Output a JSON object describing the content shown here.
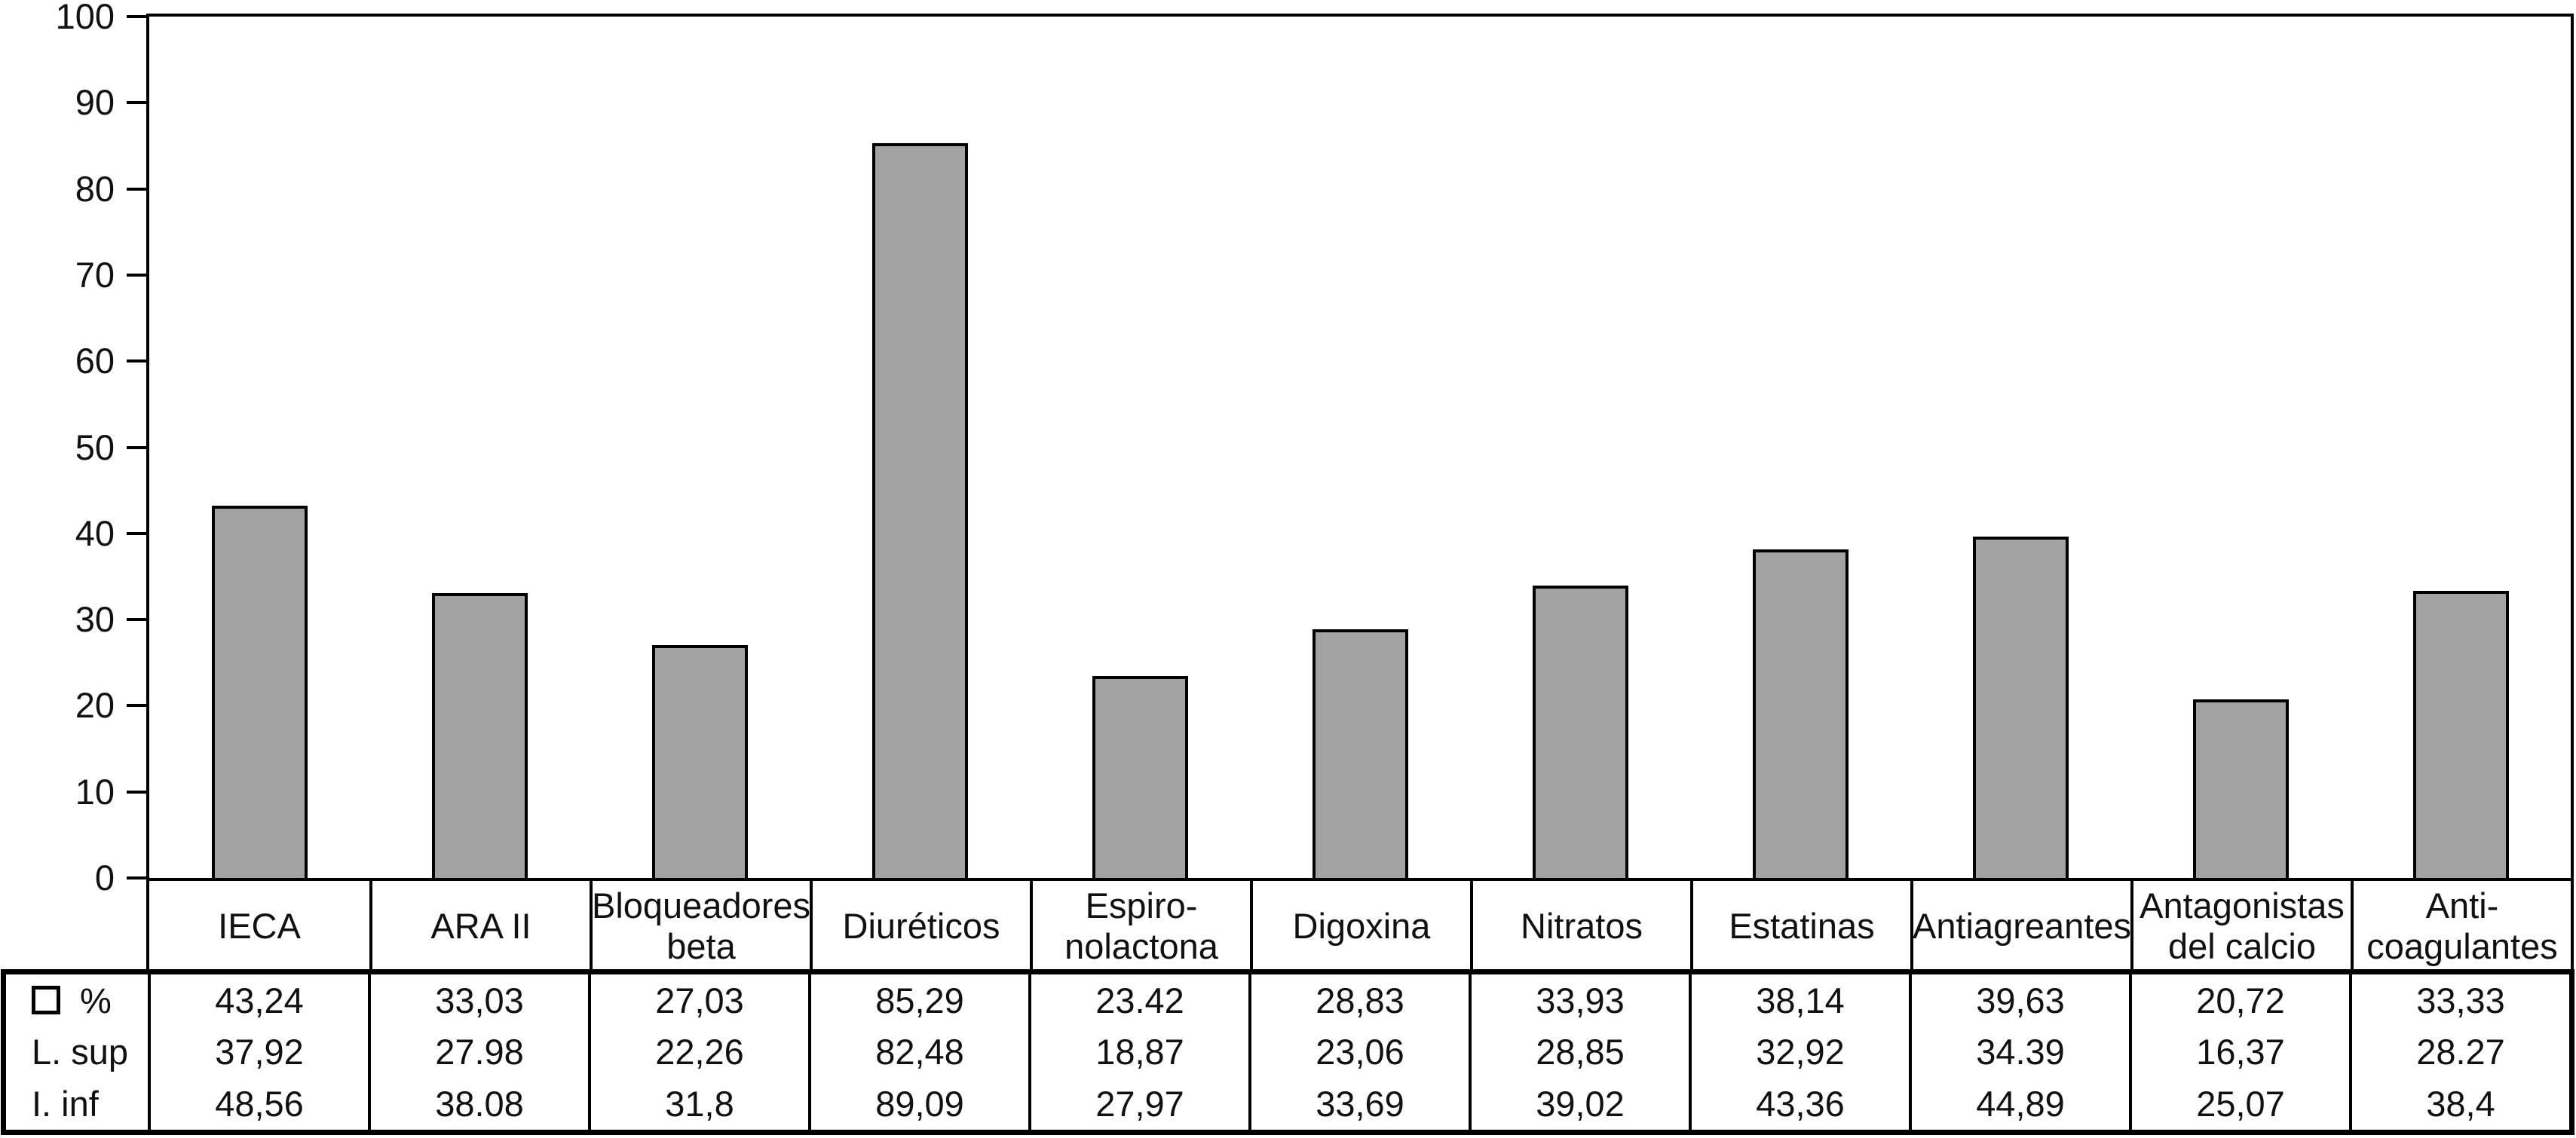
{
  "chart_data": {
    "type": "bar",
    "title": "",
    "xlabel": "",
    "ylabel": "",
    "ylim": [
      0,
      100
    ],
    "yticks": [
      0,
      10,
      20,
      30,
      40,
      50,
      60,
      70,
      80,
      90,
      100
    ],
    "grid": false,
    "legend_position": "table-left",
    "bar_color": "#a2a2a2",
    "bar_border_color": "#000000",
    "categories": [
      {
        "lines": [
          "IECA"
        ]
      },
      {
        "lines": [
          "ARA II"
        ]
      },
      {
        "lines": [
          "Bloqueadores",
          "beta"
        ]
      },
      {
        "lines": [
          "Diuréticos"
        ]
      },
      {
        "lines": [
          "Espiro-",
          "nolactona"
        ]
      },
      {
        "lines": [
          "Digoxina"
        ]
      },
      {
        "lines": [
          "Nitratos"
        ]
      },
      {
        "lines": [
          "Estatinas"
        ]
      },
      {
        "lines": [
          "Antiagreantes"
        ]
      },
      {
        "lines": [
          "Antagonistas",
          "del calcio"
        ]
      },
      {
        "lines": [
          "Anti-",
          "coagulantes"
        ]
      }
    ],
    "series": [
      {
        "name": "%",
        "legend_symbol": "open-square-icon",
        "plotted_as_bars": true,
        "values": [
          43.24,
          33.03,
          27.03,
          85.29,
          23.42,
          28.83,
          33.93,
          38.14,
          39.63,
          20.72,
          33.33
        ],
        "values_text": [
          "43,24",
          "33,03",
          "27,03",
          "85,29",
          "23.42",
          "28,83",
          "33,93",
          "38,14",
          "39,63",
          "20,72",
          "33,33"
        ]
      },
      {
        "name": "L. sup",
        "legend_symbol": "none",
        "plotted_as_bars": false,
        "values": [
          37.92,
          27.98,
          22.26,
          82.48,
          18.87,
          23.06,
          28.85,
          32.92,
          34.39,
          16.37,
          28.27
        ],
        "values_text": [
          "37,92",
          "27.98",
          "22,26",
          "82,48",
          "18,87",
          "23,06",
          "28,85",
          "32,92",
          "34.39",
          "16,37",
          "28.27"
        ]
      },
      {
        "name": "I. inf",
        "legend_symbol": "none",
        "plotted_as_bars": false,
        "values": [
          48.56,
          38.08,
          31.8,
          89.09,
          27.97,
          33.69,
          39.02,
          43.36,
          44.89,
          25.07,
          38.4
        ],
        "values_text": [
          "48,56",
          "38.08",
          "31,8",
          "89,09",
          "27,97",
          "33,69",
          "39,02",
          "43,36",
          "44,89",
          "25,07",
          "38,4"
        ]
      }
    ]
  }
}
